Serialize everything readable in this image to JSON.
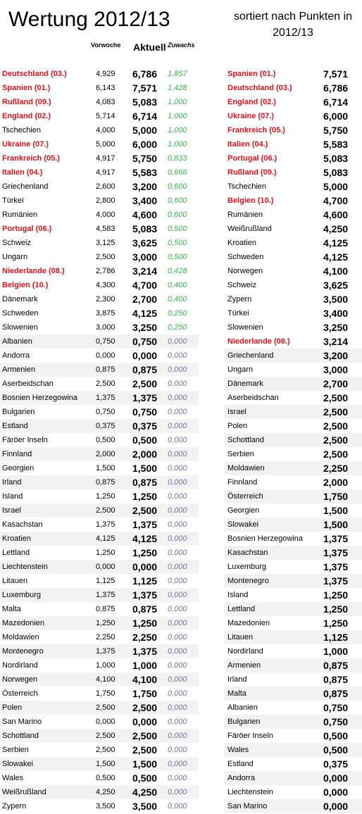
{
  "header": {
    "title": "Wertung 2012/13",
    "subtitle_line1": "sortiert nach Punkten in",
    "subtitle_line2": "2012/13",
    "col_vorwoche": "Vorwoche",
    "col_aktuell": "Aktuell",
    "col_zuwachs": "Zuwachs"
  },
  "colors": {
    "highlight_red": "#e3131b",
    "increase_green": "#39b74a",
    "zero_purple": "#7f6f9f",
    "shade_gray": "#f2f2f2"
  },
  "left_table": [
    {
      "name": "Deutschland (03.)",
      "vorwoche": "4,929",
      "aktuell": "6,786",
      "zuwachs": "1,857",
      "highlight": true
    },
    {
      "name": "Spanien (01.)",
      "vorwoche": "6,143",
      "aktuell": "7,571",
      "zuwachs": "1,428",
      "highlight": true
    },
    {
      "name": "Rußland (09.)",
      "vorwoche": "4,083",
      "aktuell": "5,083",
      "zuwachs": "1,000",
      "highlight": true
    },
    {
      "name": "England (02.)",
      "vorwoche": "5,714",
      "aktuell": "6,714",
      "zuwachs": "1,000",
      "highlight": true
    },
    {
      "name": "Tschechien",
      "vorwoche": "4,000",
      "aktuell": "5,000",
      "zuwachs": "1,000",
      "highlight": false
    },
    {
      "name": "Ukraine (07.)",
      "vorwoche": "5,000",
      "aktuell": "6,000",
      "zuwachs": "1,000",
      "highlight": true
    },
    {
      "name": "Frankreich (05.)",
      "vorwoche": "4,917",
      "aktuell": "5,750",
      "zuwachs": "0,833",
      "highlight": true
    },
    {
      "name": "Italien (04.)",
      "vorwoche": "4,917",
      "aktuell": "5,583",
      "zuwachs": "0,666",
      "highlight": true
    },
    {
      "name": "Griechenland",
      "vorwoche": "2,600",
      "aktuell": "3,200",
      "zuwachs": "0,600",
      "highlight": false
    },
    {
      "name": "Türkei",
      "vorwoche": "2,800",
      "aktuell": "3,400",
      "zuwachs": "0,600",
      "highlight": false
    },
    {
      "name": "Rumänien",
      "vorwoche": "4,000",
      "aktuell": "4,600",
      "zuwachs": "0,600",
      "highlight": false
    },
    {
      "name": "Portugal (06.)",
      "vorwoche": "4,583",
      "aktuell": "5,083",
      "zuwachs": "0,500",
      "highlight": true
    },
    {
      "name": "Schweiz",
      "vorwoche": "3,125",
      "aktuell": "3,625",
      "zuwachs": "0,500",
      "highlight": false
    },
    {
      "name": "Ungarn",
      "vorwoche": "2,500",
      "aktuell": "3,000",
      "zuwachs": "0,500",
      "highlight": false
    },
    {
      "name": "Niederlande (08.)",
      "vorwoche": "2,786",
      "aktuell": "3,214",
      "zuwachs": "0,428",
      "highlight": true
    },
    {
      "name": "Belgien (10.)",
      "vorwoche": "4,300",
      "aktuell": "4,700",
      "zuwachs": "0,400",
      "highlight": true
    },
    {
      "name": "Dänemark",
      "vorwoche": "2,300",
      "aktuell": "2,700",
      "zuwachs": "0,400",
      "highlight": false
    },
    {
      "name": "Schweden",
      "vorwoche": "3,875",
      "aktuell": "4,125",
      "zuwachs": "0,250",
      "highlight": false
    },
    {
      "name": "Slowenien",
      "vorwoche": "3,000",
      "aktuell": "3,250",
      "zuwachs": "0,250",
      "highlight": false
    },
    {
      "name": "Albanien",
      "vorwoche": "0,750",
      "aktuell": "0,750",
      "zuwachs": "0,000",
      "highlight": false
    },
    {
      "name": "Andorra",
      "vorwoche": "0,000",
      "aktuell": "0,000",
      "zuwachs": "0,000",
      "highlight": false
    },
    {
      "name": "Armenien",
      "vorwoche": "0,875",
      "aktuell": "0,875",
      "zuwachs": "0,000",
      "highlight": false
    },
    {
      "name": "Aserbeidschan",
      "vorwoche": "2,500",
      "aktuell": "2,500",
      "zuwachs": "0,000",
      "highlight": false
    },
    {
      "name": "Bosnien Herzegowina",
      "vorwoche": "1,375",
      "aktuell": "1,375",
      "zuwachs": "0,000",
      "highlight": false
    },
    {
      "name": "Bulgarien",
      "vorwoche": "0,750",
      "aktuell": "0,750",
      "zuwachs": "0,000",
      "highlight": false
    },
    {
      "name": "Estland",
      "vorwoche": "0,375",
      "aktuell": "0,375",
      "zuwachs": "0,000",
      "highlight": false
    },
    {
      "name": "Färöer Inseln",
      "vorwoche": "0,500",
      "aktuell": "0,500",
      "zuwachs": "0,000",
      "highlight": false
    },
    {
      "name": "Finnland",
      "vorwoche": "2,000",
      "aktuell": "2,000",
      "zuwachs": "0,000",
      "highlight": false
    },
    {
      "name": "Georgien",
      "vorwoche": "1,500",
      "aktuell": "1,500",
      "zuwachs": "0,000",
      "highlight": false
    },
    {
      "name": "Irland",
      "vorwoche": "0,875",
      "aktuell": "0,875",
      "zuwachs": "0,000",
      "highlight": false
    },
    {
      "name": "Island",
      "vorwoche": "1,250",
      "aktuell": "1,250",
      "zuwachs": "0,000",
      "highlight": false
    },
    {
      "name": "Israel",
      "vorwoche": "2,500",
      "aktuell": "2,500",
      "zuwachs": "0,000",
      "highlight": false
    },
    {
      "name": "Kasachstan",
      "vorwoche": "1,375",
      "aktuell": "1,375",
      "zuwachs": "0,000",
      "highlight": false
    },
    {
      "name": "Kroatien",
      "vorwoche": "4,125",
      "aktuell": "4,125",
      "zuwachs": "0,000",
      "highlight": false
    },
    {
      "name": "Lettland",
      "vorwoche": "1,250",
      "aktuell": "1,250",
      "zuwachs": "0,000",
      "highlight": false
    },
    {
      "name": "Liechtenstein",
      "vorwoche": "0,000",
      "aktuell": "0,000",
      "zuwachs": "0,000",
      "highlight": false
    },
    {
      "name": "Litauen",
      "vorwoche": "1,125",
      "aktuell": "1,125",
      "zuwachs": "0,000",
      "highlight": false
    },
    {
      "name": "Luxemburg",
      "vorwoche": "1,375",
      "aktuell": "1,375",
      "zuwachs": "0,000",
      "highlight": false
    },
    {
      "name": "Malta",
      "vorwoche": "0,875",
      "aktuell": "0,875",
      "zuwachs": "0,000",
      "highlight": false
    },
    {
      "name": "Mazedonien",
      "vorwoche": "1,250",
      "aktuell": "1,250",
      "zuwachs": "0,000",
      "highlight": false
    },
    {
      "name": "Moldawien",
      "vorwoche": "2,250",
      "aktuell": "2,250",
      "zuwachs": "0,000",
      "highlight": false
    },
    {
      "name": "Montenegro",
      "vorwoche": "1,375",
      "aktuell": "1,375",
      "zuwachs": "0,000",
      "highlight": false
    },
    {
      "name": "Nordirland",
      "vorwoche": "1,000",
      "aktuell": "1,000",
      "zuwachs": "0,000",
      "highlight": false
    },
    {
      "name": "Norwegen",
      "vorwoche": "4,100",
      "aktuell": "4,100",
      "zuwachs": "0,000",
      "highlight": false
    },
    {
      "name": "Österreich",
      "vorwoche": "1,750",
      "aktuell": "1,750",
      "zuwachs": "0,000",
      "highlight": false
    },
    {
      "name": "Polen",
      "vorwoche": "2,500",
      "aktuell": "2,500",
      "zuwachs": "0,000",
      "highlight": false
    },
    {
      "name": "San Marino",
      "vorwoche": "0,000",
      "aktuell": "0,000",
      "zuwachs": "0,000",
      "highlight": false
    },
    {
      "name": "Schottland",
      "vorwoche": "2,500",
      "aktuell": "2,500",
      "zuwachs": "0,000",
      "highlight": false
    },
    {
      "name": "Serbien",
      "vorwoche": "2,500",
      "aktuell": "2,500",
      "zuwachs": "0,000",
      "highlight": false
    },
    {
      "name": "Slowakei",
      "vorwoche": "1,500",
      "aktuell": "1,500",
      "zuwachs": "0,000",
      "highlight": false
    },
    {
      "name": "Wales",
      "vorwoche": "0,500",
      "aktuell": "0,500",
      "zuwachs": "0,000",
      "highlight": false
    },
    {
      "name": "Weißrußland",
      "vorwoche": "4,250",
      "aktuell": "4,250",
      "zuwachs": "0,000",
      "highlight": false
    },
    {
      "name": "Zypern",
      "vorwoche": "3,500",
      "aktuell": "3,500",
      "zuwachs": "0,000",
      "highlight": false
    }
  ],
  "right_table": [
    {
      "name": "Spanien (01.)",
      "punkte": "7,571",
      "highlight": true
    },
    {
      "name": "Deutschland (03.)",
      "punkte": "6,786",
      "highlight": true
    },
    {
      "name": "England (02.)",
      "punkte": "6,714",
      "highlight": true
    },
    {
      "name": "Ukraine (07.)",
      "punkte": "6,000",
      "highlight": true
    },
    {
      "name": "Frankreich (05.)",
      "punkte": "5,750",
      "highlight": true
    },
    {
      "name": "Italien (04.)",
      "punkte": "5,583",
      "highlight": true
    },
    {
      "name": "Portugal (06.)",
      "punkte": "5,083",
      "highlight": true
    },
    {
      "name": "Rußland (09.)",
      "punkte": "5,083",
      "highlight": true
    },
    {
      "name": "Tschechien",
      "punkte": "5,000",
      "highlight": false
    },
    {
      "name": "Belgien (10.)",
      "punkte": "4,700",
      "highlight": true
    },
    {
      "name": "Rumänien",
      "punkte": "4,600",
      "highlight": false
    },
    {
      "name": "Weißrußland",
      "punkte": "4,250",
      "highlight": false
    },
    {
      "name": "Kroatien",
      "punkte": "4,125",
      "highlight": false
    },
    {
      "name": "Schweden",
      "punkte": "4,125",
      "highlight": false
    },
    {
      "name": "Norwegen",
      "punkte": "4,100",
      "highlight": false
    },
    {
      "name": "Schweiz",
      "punkte": "3,625",
      "highlight": false
    },
    {
      "name": "Zypern",
      "punkte": "3,500",
      "highlight": false
    },
    {
      "name": "Türkei",
      "punkte": "3,400",
      "highlight": false
    },
    {
      "name": "Slowenien",
      "punkte": "3,250",
      "highlight": false
    },
    {
      "name": "Niederlande (08.)",
      "punkte": "3,214",
      "highlight": true
    },
    {
      "name": "Griechenland",
      "punkte": "3,200",
      "highlight": false
    },
    {
      "name": "Ungarn",
      "punkte": "3,000",
      "highlight": false
    },
    {
      "name": "Dänemark",
      "punkte": "2,700",
      "highlight": false
    },
    {
      "name": "Aserbeidschan",
      "punkte": "2,500",
      "highlight": false
    },
    {
      "name": "Israel",
      "punkte": "2,500",
      "highlight": false
    },
    {
      "name": "Polen",
      "punkte": "2,500",
      "highlight": false
    },
    {
      "name": "Schottland",
      "punkte": "2,500",
      "highlight": false
    },
    {
      "name": "Serbien",
      "punkte": "2,500",
      "highlight": false
    },
    {
      "name": "Moldawien",
      "punkte": "2,250",
      "highlight": false
    },
    {
      "name": "Finnland",
      "punkte": "2,000",
      "highlight": false
    },
    {
      "name": "Österreich",
      "punkte": "1,750",
      "highlight": false
    },
    {
      "name": "Georgien",
      "punkte": "1,500",
      "highlight": false
    },
    {
      "name": "Slowakei",
      "punkte": "1,500",
      "highlight": false
    },
    {
      "name": "Bosnien Herzegowina",
      "punkte": "1,375",
      "highlight": false
    },
    {
      "name": "Kasachstan",
      "punkte": "1,375",
      "highlight": false
    },
    {
      "name": "Luxemburg",
      "punkte": "1,375",
      "highlight": false
    },
    {
      "name": "Montenegro",
      "punkte": "1,375",
      "highlight": false
    },
    {
      "name": "Island",
      "punkte": "1,250",
      "highlight": false
    },
    {
      "name": "Lettland",
      "punkte": "1,250",
      "highlight": false
    },
    {
      "name": "Mazedonien",
      "punkte": "1,250",
      "highlight": false
    },
    {
      "name": "Litauen",
      "punkte": "1,125",
      "highlight": false
    },
    {
      "name": "Nordirland",
      "punkte": "1,000",
      "highlight": false
    },
    {
      "name": "Armenien",
      "punkte": "0,875",
      "highlight": false
    },
    {
      "name": "Irland",
      "punkte": "0,875",
      "highlight": false
    },
    {
      "name": "Malta",
      "punkte": "0,875",
      "highlight": false
    },
    {
      "name": "Albanien",
      "punkte": "0,750",
      "highlight": false
    },
    {
      "name": "Bulgarien",
      "punkte": "0,750",
      "highlight": false
    },
    {
      "name": "Färöer Inseln",
      "punkte": "0,500",
      "highlight": false
    },
    {
      "name": "Wales",
      "punkte": "0,500",
      "highlight": false
    },
    {
      "name": "Estland",
      "punkte": "0,375",
      "highlight": false
    },
    {
      "name": "Andorra",
      "punkte": "0,000",
      "highlight": false
    },
    {
      "name": "Liechtenstein",
      "punkte": "0,000",
      "highlight": false
    },
    {
      "name": "San Marino",
      "punkte": "0,000",
      "highlight": false
    }
  ]
}
